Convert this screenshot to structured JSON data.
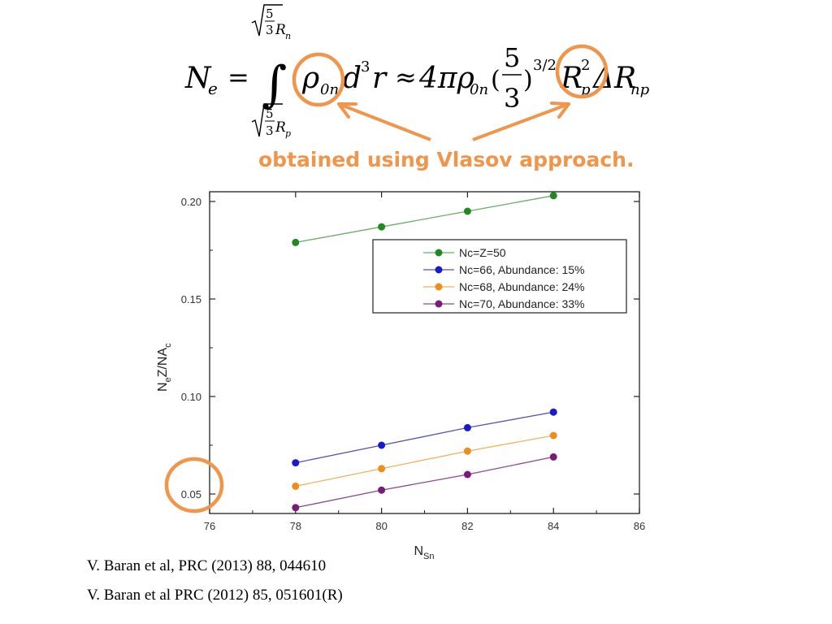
{
  "formula": {
    "lhs_symbol": "N",
    "lhs_sub": "e",
    "equals": "=",
    "upper_limit_frac_num": "5",
    "upper_limit_frac_den": "3",
    "upper_limit_var": "R",
    "upper_limit_sub": "n",
    "lower_limit_frac_num": "5",
    "lower_limit_frac_den": "3",
    "lower_limit_var": "R",
    "lower_limit_sub": "p",
    "integrand_rho": "ρ",
    "integrand_rho_sub": "0n",
    "integrand_d": "d",
    "integrand_d_sup": "3",
    "integrand_r": "r",
    "approx": "≈",
    "rhs_coeff": "4πρ",
    "rhs_rho_sub": "0n",
    "rhs_paren_open": "(",
    "rhs_frac_num": "5",
    "rhs_frac_den": "3",
    "rhs_paren_close": ")",
    "rhs_exp": "3/2",
    "rhs_R": "R",
    "rhs_R_sup": "2",
    "rhs_R_sub": "p",
    "rhs_delta": "ΔR",
    "rhs_delta_sub": "np"
  },
  "annotation": {
    "text": "obtained using Vlasov approach.",
    "color": "#f0954a"
  },
  "chart_data": {
    "type": "line",
    "xlabel": "N",
    "xlabel_sub": "Sn",
    "ylabel": "N",
    "ylabel_sub_e": "e",
    "ylabel_mid": "Z/NA",
    "ylabel_sub_c": "c",
    "xlim": [
      76,
      86
    ],
    "ylim": [
      0.04,
      0.205
    ],
    "xticks": [
      "76",
      "78",
      "80",
      "82",
      "84",
      "86"
    ],
    "yticks": [
      "0.05",
      "0.10",
      "0.15",
      "0.20"
    ],
    "legend_position": "top-right",
    "series": [
      {
        "name": "Nc=Z=50",
        "color": "#1f8a1f",
        "line_color": "#6aae6a",
        "x": [
          78,
          80,
          82,
          84
        ],
        "y": [
          0.179,
          0.187,
          0.195,
          0.203
        ]
      },
      {
        "name": "Nc=66, Abundance: 15%",
        "color": "#1a1acc",
        "line_color": "#5555aa",
        "x": [
          78,
          80,
          82,
          84
        ],
        "y": [
          0.066,
          0.075,
          0.084,
          0.092
        ]
      },
      {
        "name": "Nc=68, Abundance: 24%",
        "color": "#f08c1a",
        "line_color": "#f0b060",
        "x": [
          78,
          80,
          82,
          84
        ],
        "y": [
          0.054,
          0.063,
          0.072,
          0.08
        ]
      },
      {
        "name": "Nc=70, Abundance: 33%",
        "color": "#7a1a7a",
        "line_color": "#8a4a8a",
        "x": [
          78,
          80,
          82,
          84
        ],
        "y": [
          0.043,
          0.052,
          0.06,
          0.069
        ]
      }
    ]
  },
  "references": [
    "V. Baran et al, PRC (2013) 88,  044610",
    "V. Baran et al PRC (2012) 85, 051601(R)"
  ]
}
